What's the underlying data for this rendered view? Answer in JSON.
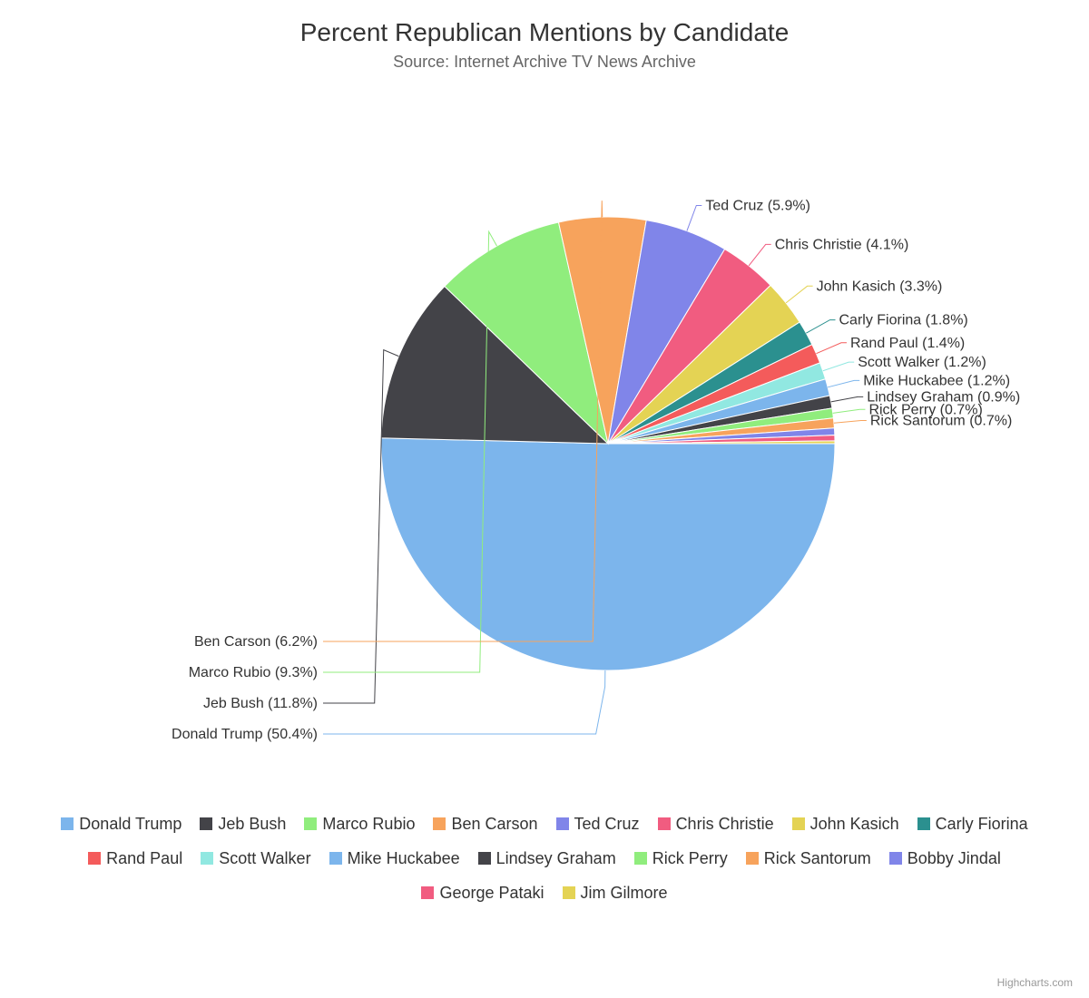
{
  "chart": {
    "type": "pie",
    "title": "Percent Republican Mentions by Candidate",
    "subtitle": "Source: Internet Archive TV News Archive",
    "title_fontsize": 28,
    "subtitle_fontsize": 18,
    "title_color": "#333333",
    "subtitle_color": "#666666",
    "background_color": "#ffffff",
    "label_fontsize": 16,
    "label_color": "#333333",
    "legend_fontsize": 18,
    "slice_border_color": "#ffffff",
    "slice_border_width": 1,
    "connector_color": "#333333",
    "credits": "Highcharts.com",
    "pie_radius": 250,
    "start_angle_deg": 90,
    "series": [
      {
        "name": "Donald Trump",
        "value": 50.4,
        "color": "#7cb5ec",
        "show_label": true
      },
      {
        "name": "Jeb Bush",
        "value": 11.8,
        "color": "#434348",
        "show_label": true
      },
      {
        "name": "Marco Rubio",
        "value": 9.3,
        "color": "#90ed7d",
        "show_label": true
      },
      {
        "name": "Ben Carson",
        "value": 6.2,
        "color": "#f7a35c",
        "show_label": true
      },
      {
        "name": "Ted Cruz",
        "value": 5.9,
        "color": "#8085e9",
        "show_label": true
      },
      {
        "name": "Chris Christie",
        "value": 4.1,
        "color": "#f15c80",
        "show_label": true
      },
      {
        "name": "John Kasich",
        "value": 3.3,
        "color": "#e4d354",
        "show_label": true
      },
      {
        "name": "Carly Fiorina",
        "value": 1.8,
        "color": "#2b908f",
        "show_label": true
      },
      {
        "name": "Rand Paul",
        "value": 1.4,
        "color": "#f45b5b",
        "show_label": true
      },
      {
        "name": "Scott Walker",
        "value": 1.2,
        "color": "#91e8e1",
        "show_label": true
      },
      {
        "name": "Mike Huckabee",
        "value": 1.2,
        "color": "#7cb5ec",
        "show_label": true
      },
      {
        "name": "Lindsey Graham",
        "value": 0.9,
        "color": "#434348",
        "show_label": true
      },
      {
        "name": "Rick Perry",
        "value": 0.7,
        "color": "#90ed7d",
        "show_label": true
      },
      {
        "name": "Rick Santorum",
        "value": 0.7,
        "color": "#f7a35c",
        "show_label": true
      },
      {
        "name": "Bobby Jindal",
        "value": 0.5,
        "color": "#8085e9",
        "show_label": false
      },
      {
        "name": "George Pataki",
        "value": 0.4,
        "color": "#f15c80",
        "show_label": false
      },
      {
        "name": "Jim Gilmore",
        "value": 0.2,
        "color": "#e4d354",
        "show_label": false
      }
    ]
  }
}
